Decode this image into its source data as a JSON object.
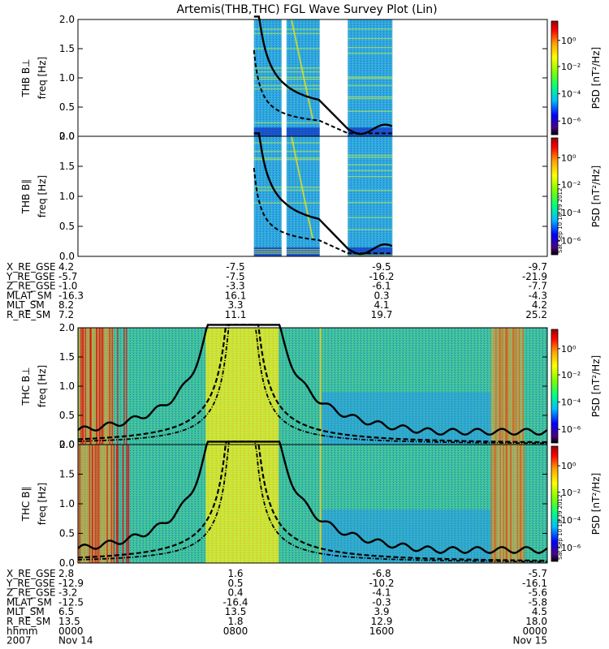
{
  "chart_data": {
    "type": "heatmap",
    "title": "Artemis(THB,THC) FGL Wave Survey Plot (Lin)",
    "colorbar": {
      "label": "PSD [nT²/Hz]",
      "scale": "log",
      "ticks": [
        "10⁰",
        "10⁻²",
        "10⁻⁴",
        "10⁻⁶"
      ],
      "colors": [
        "#000000",
        "#4b0082",
        "#0000ff",
        "#00bfff",
        "#00ff7f",
        "#7fff00",
        "#ffff00",
        "#ffa500",
        "#ff0000",
        "#9b0000"
      ]
    },
    "footnote": "Sat Sep 10 18:39 2012",
    "panels": [
      {
        "id": "thb-bperp",
        "ylabel": "THB B⊥",
        "yunit": "freq [Hz]",
        "ylim": [
          0.0,
          2.0
        ],
        "yticks": [
          "0.0",
          "0.5",
          "1.0",
          "1.5",
          "2.0"
        ]
      },
      {
        "id": "thb-bpar",
        "ylabel": "THB B∥",
        "yunit": "freq [Hz]",
        "ylim": [
          0.0,
          2.0
        ],
        "yticks": [
          "0.0",
          "0.5",
          "1.0",
          "1.5",
          "2.0"
        ]
      },
      {
        "id": "thc-bperp",
        "ylabel": "THC B⊥",
        "yunit": "freq [Hz]",
        "ylim": [
          0.0,
          2.0
        ],
        "yticks": [
          "0.0",
          "0.5",
          "1.0",
          "1.5",
          "2.0"
        ]
      },
      {
        "id": "thc-bpar",
        "ylabel": "THC B∥",
        "yunit": "freq [Hz]",
        "ylim": [
          0.0,
          2.0
        ],
        "yticks": [
          "0.0",
          "0.5",
          "1.0",
          "1.5",
          "2.0"
        ]
      }
    ],
    "ephemeris_thb": {
      "labels": [
        "X_RE_GSE",
        "Y_RE_GSE",
        "Z_RE_GSE",
        "MLAT_SM",
        "MLT_SM",
        "R_RE_SM"
      ],
      "columns": [
        [
          "4.2",
          "-5.7",
          "-1.0",
          "-16.3",
          "8.2",
          "7.2"
        ],
        [
          "-7.5",
          "-7.5",
          "-3.3",
          "16.1",
          "3.3",
          "11.1"
        ],
        [
          "-9.5",
          "-16.2",
          "-6.1",
          "0.3",
          "4.1",
          "19.7"
        ],
        [
          "-9.7",
          "-21.9",
          "-7.7",
          "-4.3",
          "4.2",
          "25.2"
        ]
      ]
    },
    "ephemeris_thc": {
      "labels": [
        "X_RE_GSE",
        "Y_RE_GSE",
        "Z_RE_GSE",
        "MLAT_SM",
        "MLT_SM",
        "R_RE_SM",
        "hhmm",
        "2007"
      ],
      "columns": [
        [
          "2.8",
          "-12.9",
          "-3.2",
          "-12.5",
          "6.5",
          "13.5",
          "0000",
          "Nov 14"
        ],
        [
          "1.6",
          "0.5",
          "0.4",
          "-16.4",
          "13.5",
          "1.8",
          "0800",
          ""
        ],
        [
          "-6.8",
          "-10.2",
          "-4.1",
          "-0.3",
          "3.9",
          "12.9",
          "1600",
          ""
        ],
        [
          "-5.7",
          "-16.1",
          "-5.6",
          "-5.8",
          "4.5",
          "18.0",
          "0000",
          "Nov 15"
        ]
      ]
    },
    "thb_coverage": [
      [
        0.375,
        0.515
      ],
      [
        0.575,
        0.67
      ]
    ]
  }
}
